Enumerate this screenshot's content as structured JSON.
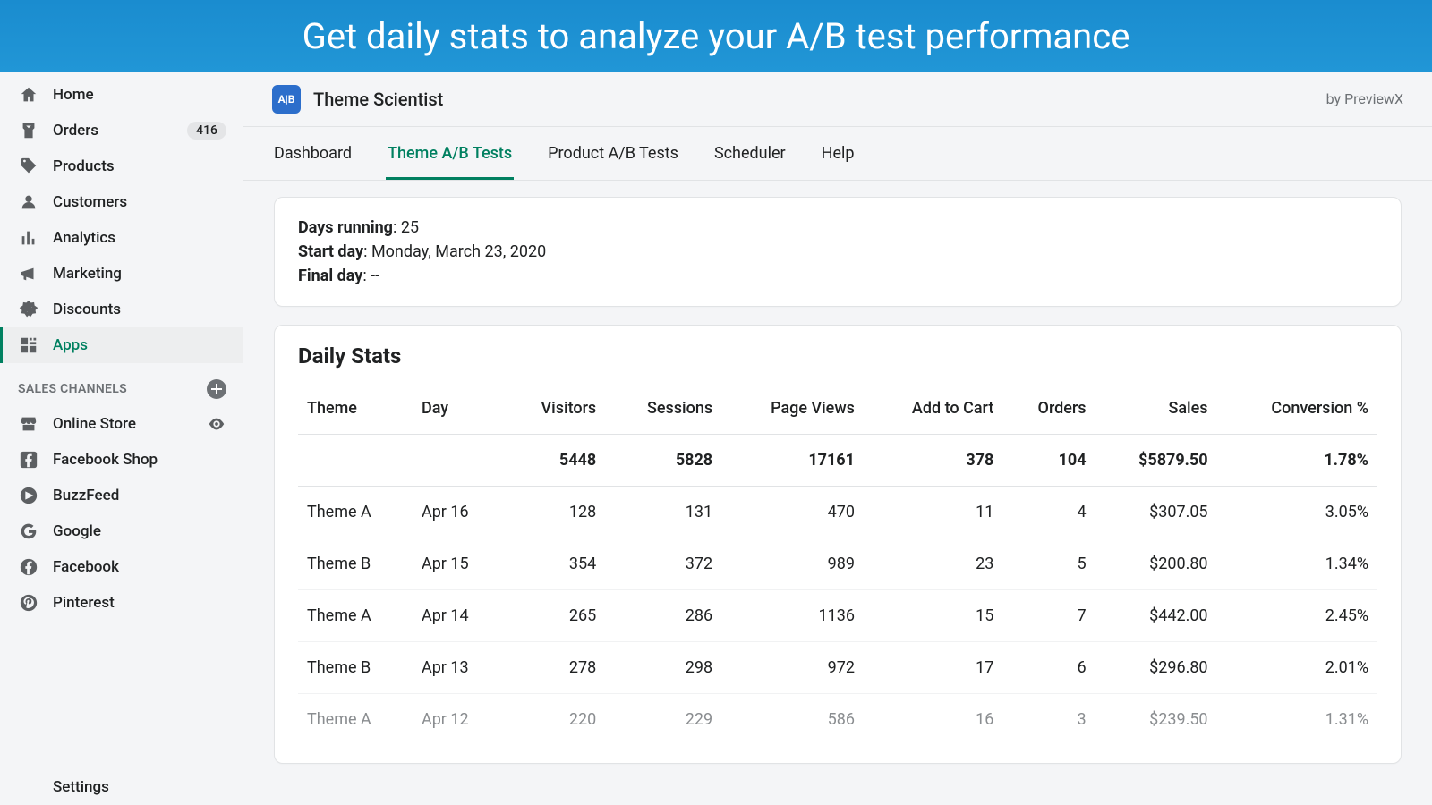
{
  "banner": {
    "text": "Get daily stats to analyze your A/B test performance"
  },
  "sidebar": {
    "nav": [
      {
        "label": "Home",
        "icon": "home"
      },
      {
        "label": "Orders",
        "icon": "orders",
        "badge": "416"
      },
      {
        "label": "Products",
        "icon": "tag"
      },
      {
        "label": "Customers",
        "icon": "person"
      },
      {
        "label": "Analytics",
        "icon": "analytics"
      },
      {
        "label": "Marketing",
        "icon": "megaphone"
      },
      {
        "label": "Discounts",
        "icon": "discount"
      },
      {
        "label": "Apps",
        "icon": "apps",
        "active": true
      }
    ],
    "channels_header": "SALES CHANNELS",
    "channels": [
      {
        "label": "Online Store",
        "icon": "store",
        "eye": true
      },
      {
        "label": "Facebook Shop",
        "icon": "facebook-square"
      },
      {
        "label": "BuzzFeed",
        "icon": "buzzfeed"
      },
      {
        "label": "Google",
        "icon": "google"
      },
      {
        "label": "Facebook",
        "icon": "facebook-circle"
      },
      {
        "label": "Pinterest",
        "icon": "pinterest"
      }
    ],
    "settings_label": "Settings"
  },
  "app_header": {
    "icon_text": "A|B",
    "title": "Theme Scientist",
    "by": "by PreviewX"
  },
  "tabs": [
    {
      "label": "Dashboard"
    },
    {
      "label": "Theme A/B Tests",
      "active": true
    },
    {
      "label": "Product A/B Tests"
    },
    {
      "label": "Scheduler"
    },
    {
      "label": "Help"
    }
  ],
  "summary": {
    "days_running_label": "Days running",
    "days_running_value": "25",
    "start_day_label": "Start day",
    "start_day_value": "Monday, March 23, 2020",
    "final_day_label": "Final day",
    "final_day_value": "--"
  },
  "daily_stats": {
    "title": "Daily Stats",
    "columns": [
      "Theme",
      "Day",
      "Visitors",
      "Sessions",
      "Page Views",
      "Add to Cart",
      "Orders",
      "Sales",
      "Conversion %"
    ],
    "totals": [
      "",
      "",
      "5448",
      "5828",
      "17161",
      "378",
      "104",
      "$5879.50",
      "1.78%"
    ],
    "rows": [
      [
        "Theme A",
        "Apr 16",
        "128",
        "131",
        "470",
        "11",
        "4",
        "$307.05",
        "3.05%"
      ],
      [
        "Theme B",
        "Apr 15",
        "354",
        "372",
        "989",
        "23",
        "5",
        "$200.80",
        "1.34%"
      ],
      [
        "Theme A",
        "Apr 14",
        "265",
        "286",
        "1136",
        "15",
        "7",
        "$442.00",
        "2.45%"
      ],
      [
        "Theme B",
        "Apr 13",
        "278",
        "298",
        "972",
        "17",
        "6",
        "$296.80",
        "2.01%"
      ],
      [
        "Theme A",
        "Apr 12",
        "220",
        "229",
        "586",
        "16",
        "3",
        "$239.50",
        "1.31%"
      ]
    ]
  },
  "colors": {
    "banner_bg": "#1a8ccf",
    "accent": "#008060",
    "badge_bg": "#e4e5e7",
    "border": "#e1e3e5",
    "text": "#202223",
    "muted": "#6d7175",
    "bg": "#f4f5f7"
  }
}
